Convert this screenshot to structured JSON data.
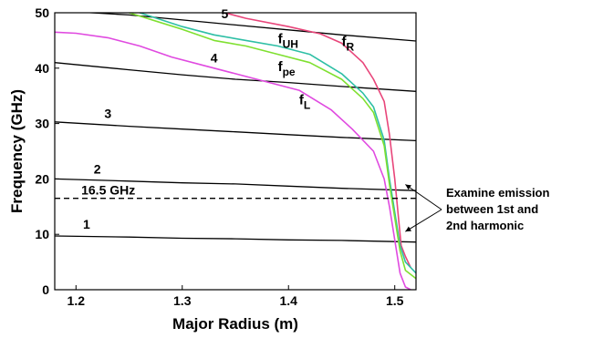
{
  "chart_data": {
    "type": "line",
    "xlabel": "Major Radius (m)",
    "ylabel": "Frequency (GHz)",
    "xlim": [
      1.18,
      1.52
    ],
    "ylim": [
      0,
      50
    ],
    "x_ticks": [
      "1.2",
      "1.3",
      "1.4",
      "1.5"
    ],
    "y_ticks": [
      "0",
      "10",
      "20",
      "30",
      "40",
      "50"
    ],
    "grid": false,
    "series": [
      {
        "name": "1",
        "color": "#000000",
        "points": [
          [
            1.18,
            9.7
          ],
          [
            1.25,
            9.5
          ],
          [
            1.3,
            9.3
          ],
          [
            1.35,
            9.2
          ],
          [
            1.4,
            9.0
          ],
          [
            1.45,
            8.9
          ],
          [
            1.52,
            8.6
          ]
        ]
      },
      {
        "name": "2",
        "color": "#000000",
        "points": [
          [
            1.18,
            20.0
          ],
          [
            1.25,
            19.6
          ],
          [
            1.3,
            19.3
          ],
          [
            1.35,
            19.1
          ],
          [
            1.4,
            18.7
          ],
          [
            1.45,
            18.3
          ],
          [
            1.52,
            17.9
          ]
        ]
      },
      {
        "name": "3",
        "color": "#000000",
        "points": [
          [
            1.18,
            30.3
          ],
          [
            1.25,
            29.5
          ],
          [
            1.3,
            29.0
          ],
          [
            1.35,
            28.5
          ],
          [
            1.4,
            28.0
          ],
          [
            1.45,
            27.5
          ],
          [
            1.52,
            26.9
          ]
        ]
      },
      {
        "name": "4",
        "color": "#000000",
        "points": [
          [
            1.18,
            41.0
          ],
          [
            1.25,
            39.7
          ],
          [
            1.3,
            38.8
          ],
          [
            1.35,
            38.0
          ],
          [
            1.4,
            37.4
          ],
          [
            1.45,
            36.7
          ],
          [
            1.52,
            35.8
          ]
        ]
      },
      {
        "name": "5",
        "color": "#000000",
        "points": [
          [
            1.18,
            50.4
          ],
          [
            1.25,
            49.6
          ],
          [
            1.3,
            48.7
          ],
          [
            1.35,
            47.8
          ],
          [
            1.4,
            46.9
          ],
          [
            1.45,
            46.0
          ],
          [
            1.52,
            44.9
          ]
        ]
      },
      {
        "name": "f_R",
        "color": "#e8457a",
        "points": [
          [
            1.34,
            50.0
          ],
          [
            1.36,
            49.0
          ],
          [
            1.4,
            47.5
          ],
          [
            1.43,
            46.2
          ],
          [
            1.45,
            44.5
          ],
          [
            1.47,
            41.0
          ],
          [
            1.48,
            38.0
          ],
          [
            1.49,
            34.0
          ],
          [
            1.495,
            28.0
          ],
          [
            1.5,
            20.0
          ],
          [
            1.503,
            14.0
          ],
          [
            1.506,
            8.0
          ],
          [
            1.51,
            6.0
          ],
          [
            1.515,
            4.0
          ]
        ]
      },
      {
        "name": "f_UH",
        "color": "#2dbfa5",
        "points": [
          [
            1.26,
            50.0
          ],
          [
            1.3,
            47.5
          ],
          [
            1.33,
            46.0
          ],
          [
            1.36,
            45.0
          ],
          [
            1.39,
            44.0
          ],
          [
            1.42,
            42.5
          ],
          [
            1.45,
            39.0
          ],
          [
            1.47,
            35.5
          ],
          [
            1.48,
            33.0
          ],
          [
            1.49,
            27.0
          ],
          [
            1.495,
            20.0
          ],
          [
            1.5,
            14.0
          ],
          [
            1.505,
            8.0
          ],
          [
            1.51,
            5.0
          ],
          [
            1.52,
            3.0
          ]
        ]
      },
      {
        "name": "f_pe",
        "color": "#7fe030",
        "points": [
          [
            1.25,
            50.0
          ],
          [
            1.3,
            47.0
          ],
          [
            1.33,
            45.0
          ],
          [
            1.36,
            44.0
          ],
          [
            1.39,
            42.5
          ],
          [
            1.42,
            41.0
          ],
          [
            1.45,
            38.0
          ],
          [
            1.47,
            34.5
          ],
          [
            1.48,
            32.0
          ],
          [
            1.49,
            26.0
          ],
          [
            1.495,
            19.0
          ],
          [
            1.5,
            13.0
          ],
          [
            1.505,
            7.0
          ],
          [
            1.51,
            3.5
          ],
          [
            1.52,
            2.0
          ]
        ]
      },
      {
        "name": "f_L",
        "color": "#e04ae0",
        "points": [
          [
            1.18,
            46.5
          ],
          [
            1.2,
            46.3
          ],
          [
            1.23,
            45.5
          ],
          [
            1.26,
            44.0
          ],
          [
            1.29,
            42.0
          ],
          [
            1.32,
            40.5
          ],
          [
            1.35,
            39.0
          ],
          [
            1.38,
            37.5
          ],
          [
            1.41,
            36.0
          ],
          [
            1.44,
            32.5
          ],
          [
            1.46,
            29.0
          ],
          [
            1.48,
            25.0
          ],
          [
            1.49,
            20.0
          ],
          [
            1.495,
            15.0
          ],
          [
            1.5,
            9.0
          ],
          [
            1.505,
            3.0
          ],
          [
            1.51,
            0.5
          ],
          [
            1.515,
            0.0
          ]
        ]
      }
    ],
    "harmonic_labels": [
      {
        "text": "1",
        "x": 1.21,
        "y": 11.0
      },
      {
        "text": "2",
        "x": 1.22,
        "y": 21.0
      },
      {
        "text": "3",
        "x": 1.23,
        "y": 31.0
      },
      {
        "text": "4",
        "x": 1.33,
        "y": 41.0
      },
      {
        "text": "5",
        "x": 1.34,
        "y": 49.0
      }
    ],
    "cutoff_labels": [
      {
        "main": "f",
        "sub": "UH",
        "x": 1.39,
        "y": 44.5
      },
      {
        "main": "f",
        "sub": "R",
        "x": 1.45,
        "y": 44.0
      },
      {
        "main": "f",
        "sub": "pe",
        "x": 1.39,
        "y": 39.5
      },
      {
        "main": "f",
        "sub": "L",
        "x": 1.41,
        "y": 33.5
      }
    ],
    "reference_line": {
      "label": "16.5 GHz",
      "y": 16.5,
      "style": "dashed"
    },
    "annotation": {
      "lines": [
        "Examine emission",
        "between 1st and",
        "2nd harmonic"
      ],
      "arrow_targets": [
        [
          1.51,
          19.0
        ],
        [
          1.51,
          10.5
        ]
      ]
    }
  }
}
